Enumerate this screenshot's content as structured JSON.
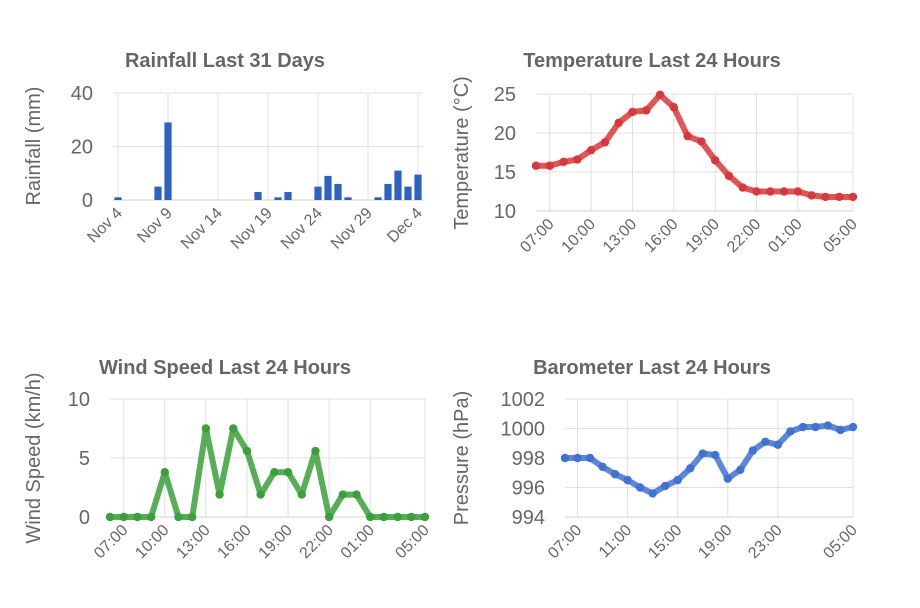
{
  "chart_data": [
    {
      "id": "rain",
      "type": "bar",
      "title": "Rainfall Last 31 Days",
      "ylabel": "Rainfall (mm)",
      "xlabel": "",
      "color": "#2e62c1",
      "ylim": [
        0,
        40
      ],
      "yticks": [
        0,
        20,
        40
      ],
      "categories": [
        "Nov 4",
        "Nov 5",
        "Nov 6",
        "Nov 7",
        "Nov 8",
        "Nov 9",
        "Nov 10",
        "Nov 11",
        "Nov 12",
        "Nov 13",
        "Nov 14",
        "Nov 15",
        "Nov 16",
        "Nov 17",
        "Nov 18",
        "Nov 19",
        "Nov 20",
        "Nov 21",
        "Nov 22",
        "Nov 23",
        "Nov 24",
        "Nov 25",
        "Nov 26",
        "Nov 27",
        "Nov 28",
        "Nov 29",
        "Nov 30",
        "Dec 1",
        "Dec 2",
        "Dec 3",
        "Dec 4"
      ],
      "tick_labels": [
        "Nov 4",
        "Nov 9",
        "Nov 14",
        "Nov 19",
        "Nov 24",
        "Nov 29",
        "Dec 4"
      ],
      "values": [
        1,
        0,
        0,
        0,
        5,
        29,
        0,
        0,
        0,
        0,
        0,
        0,
        0,
        0,
        3,
        0,
        1,
        3,
        0,
        0,
        5,
        9,
        6,
        1,
        0,
        0,
        1,
        6,
        11,
        5,
        9.5
      ],
      "grid": true
    },
    {
      "id": "temp",
      "type": "line",
      "title": "Temperature Last 24 Hours",
      "ylabel": "Temperature (°C)",
      "xlabel": "",
      "color": "#d9383a",
      "ylim": [
        10,
        25
      ],
      "yticks": [
        10,
        15,
        20,
        25
      ],
      "x": [
        "06:00",
        "07:00",
        "08:00",
        "09:00",
        "10:00",
        "11:00",
        "12:00",
        "13:00",
        "14:00",
        "15:00",
        "16:00",
        "17:00",
        "18:00",
        "19:00",
        "20:00",
        "21:00",
        "22:00",
        "23:00",
        "00:00",
        "01:00",
        "02:00",
        "03:00",
        "04:00",
        "05:00"
      ],
      "tick_labels": [
        "07:00",
        "10:00",
        "13:00",
        "16:00",
        "19:00",
        "22:00",
        "01:00",
        "05:00"
      ],
      "values": [
        15.8,
        15.8,
        16.3,
        16.6,
        17.8,
        18.8,
        21.3,
        22.7,
        22.9,
        24.9,
        23.3,
        19.6,
        18.9,
        16.5,
        14.5,
        13.0,
        12.5,
        12.5,
        12.5,
        12.5,
        12.0,
        11.8,
        11.8,
        11.8
      ],
      "grid": true
    },
    {
      "id": "wind",
      "type": "line",
      "title": "Wind Speed Last 24 Hours",
      "ylabel": "Wind Speed (km/h)",
      "xlabel": "",
      "color": "#3aa03a",
      "ylim": [
        0,
        10
      ],
      "yticks": [
        0,
        5,
        10
      ],
      "x": [
        "06:00",
        "07:00",
        "08:00",
        "09:00",
        "10:00",
        "11:00",
        "12:00",
        "13:00",
        "14:00",
        "15:00",
        "16:00",
        "17:00",
        "18:00",
        "19:00",
        "20:00",
        "21:00",
        "22:00",
        "23:00",
        "00:00",
        "01:00",
        "02:00",
        "03:00",
        "04:00",
        "05:00"
      ],
      "tick_labels": [
        "07:00",
        "10:00",
        "13:00",
        "16:00",
        "19:00",
        "22:00",
        "01:00",
        "05:00"
      ],
      "values": [
        0,
        0,
        0,
        0,
        3.8,
        0,
        0,
        7.5,
        1.9,
        7.5,
        5.6,
        1.9,
        3.8,
        3.8,
        1.9,
        5.6,
        0,
        1.9,
        1.9,
        0,
        0,
        0,
        0,
        0
      ],
      "grid": true
    },
    {
      "id": "baro",
      "type": "line",
      "title": "Barometer Last 24 Hours",
      "ylabel": "Pressure (hPa)",
      "xlabel": "",
      "color": "#3f73d3",
      "ylim": [
        994,
        1002
      ],
      "yticks": [
        994,
        996,
        998,
        1000,
        1002
      ],
      "x": [
        "06:00",
        "07:00",
        "08:00",
        "09:00",
        "10:00",
        "11:00",
        "12:00",
        "13:00",
        "14:00",
        "15:00",
        "16:00",
        "17:00",
        "18:00",
        "19:00",
        "20:00",
        "21:00",
        "22:00",
        "23:00",
        "00:00",
        "01:00",
        "02:00",
        "03:00",
        "04:00",
        "05:00"
      ],
      "tick_labels": [
        "07:00",
        "11:00",
        "15:00",
        "19:00",
        "23:00",
        "05:00"
      ],
      "values": [
        998.0,
        998.0,
        998.0,
        997.4,
        996.9,
        996.5,
        996.0,
        995.6,
        996.1,
        996.5,
        997.3,
        998.3,
        998.2,
        996.6,
        997.2,
        998.5,
        999.1,
        998.9,
        999.8,
        1000.1,
        1000.1,
        1000.2,
        999.9,
        1000.1
      ],
      "grid": true
    }
  ]
}
